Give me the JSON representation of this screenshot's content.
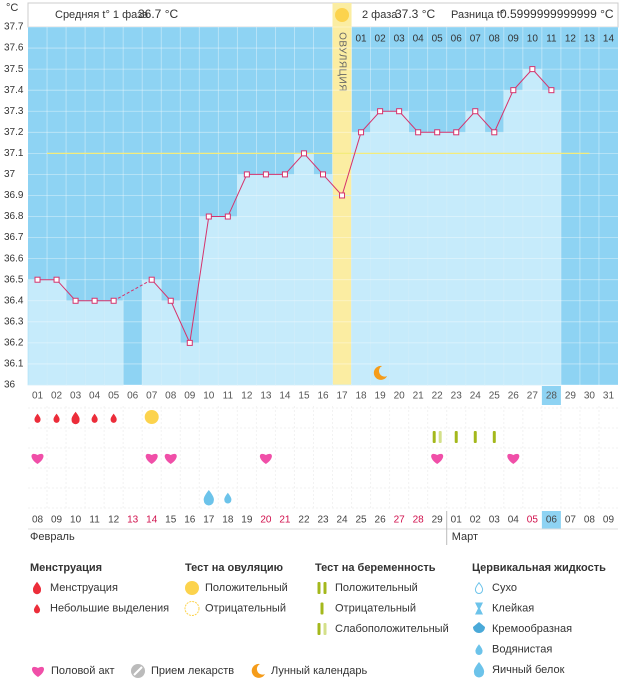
{
  "chart_data": {
    "type": "line",
    "y_unit": "°C",
    "header": {
      "phase1_label": "Средняя t° 1 фаза",
      "phase1_value": "36.7 °C",
      "phase2_label": "2 фаза",
      "phase2_value": "37.3 °C",
      "difference_label": "Разница t°",
      "difference_value": "0.5999999999999 °C"
    },
    "x": [
      "01",
      "02",
      "03",
      "04",
      "05",
      "06",
      "07",
      "08",
      "09",
      "10",
      "11",
      "12",
      "13",
      "14",
      "15",
      "16",
      "17",
      "18",
      "19",
      "20",
      "21",
      "22",
      "23",
      "24",
      "25",
      "26",
      "27",
      "28",
      "29",
      "30",
      "31"
    ],
    "series": [
      {
        "color": "#d6336c",
        "values": [
          36.5,
          36.5,
          36.4,
          36.4,
          36.4,
          null,
          36.5,
          36.4,
          36.2,
          36.8,
          36.8,
          37.0,
          37.0,
          37.0,
          37.1,
          37.0,
          36.9,
          37.2,
          37.3,
          37.3,
          37.2,
          37.2,
          37.2,
          37.3,
          37.2,
          37.4,
          37.5,
          37.4,
          null,
          null,
          null
        ]
      }
    ],
    "fill_color": "#c6ebfb",
    "background_color": "#8ed3f3",
    "ylim": [
      36,
      37.7
    ],
    "yticks": [
      36,
      36.1,
      36.2,
      36.3,
      36.4,
      36.5,
      36.6,
      36.7,
      36.8,
      36.9,
      37,
      37.1,
      37.2,
      37.3,
      37.4,
      37.5,
      37.6,
      37.7
    ],
    "grid": true,
    "cover_line": {
      "value": 37.1,
      "color": "#f4ec7c"
    },
    "ovulation": {
      "day": "17",
      "label": "ОВУЛЯЦИЯ",
      "color": "#fbeda2"
    },
    "phase2_days": [
      "01",
      "02",
      "03",
      "04",
      "05",
      "06",
      "07",
      "08",
      "09",
      "10",
      "11",
      "12",
      "13",
      "14"
    ],
    "today": "28",
    "dates": [
      "08",
      "09",
      "10",
      "11",
      "12",
      "13",
      "14",
      "15",
      "16",
      "17",
      "18",
      "19",
      "20",
      "21",
      "22",
      "23",
      "24",
      "25",
      "26",
      "27",
      "28",
      "29",
      "01",
      "02",
      "03",
      "04",
      "05",
      "06",
      "07",
      "08",
      "09"
    ],
    "date_colors": [
      "#444",
      "#444",
      "#444",
      "#444",
      "#444",
      "#d0104c",
      "#d0104c",
      "#444",
      "#444",
      "#444",
      "#444",
      "#444",
      "#d0104c",
      "#d0104c",
      "#444",
      "#444",
      "#444",
      "#444",
      "#444",
      "#d0104c",
      "#d0104c",
      "#444",
      "#444",
      "#444",
      "#444",
      "#444",
      "#d0104c",
      "#444",
      "#444",
      "#444",
      "#444"
    ],
    "months": [
      "Февраль",
      "Март"
    ],
    "moon_days": [
      "19"
    ],
    "symbols": {
      "menstruation": [
        {
          "day": "01",
          "kind": "light"
        },
        {
          "day": "02",
          "kind": "light"
        },
        {
          "day": "03",
          "kind": "heavy"
        },
        {
          "day": "04",
          "kind": "light"
        },
        {
          "day": "05",
          "kind": "light"
        }
      ],
      "ovulation_test": [
        {
          "day": "07",
          "kind": "positive"
        }
      ],
      "pregnancy_test": [
        {
          "day": "22",
          "kind": "weak"
        },
        {
          "day": "23",
          "kind": "negative"
        },
        {
          "day": "24",
          "kind": "negative"
        },
        {
          "day": "25",
          "kind": "negative"
        }
      ],
      "intercourse": [
        "01",
        "07",
        "08",
        "13",
        "22",
        "26"
      ],
      "cervical_fluid": [
        {
          "day": "10",
          "kind": "egg-white"
        },
        {
          "day": "11",
          "kind": "watery"
        }
      ]
    },
    "legend": [
      {
        "title": "Менструация",
        "items": [
          {
            "label": "Менструация",
            "icon": "menstruation-heavy"
          },
          {
            "label": "Небольшие выделения",
            "icon": "menstruation-light"
          }
        ]
      },
      {
        "title": "Тест на овуляцию",
        "items": [
          {
            "label": "Положительный",
            "icon": "ovulation-positive"
          },
          {
            "label": "Отрицательный",
            "icon": "ovulation-negative"
          }
        ]
      },
      {
        "title": "Тест на беременность",
        "items": [
          {
            "label": "Положительный",
            "icon": "pregnancy-positive"
          },
          {
            "label": "Отрицательный",
            "icon": "pregnancy-negative"
          },
          {
            "label": "Слабоположительный",
            "icon": "pregnancy-weak"
          }
        ]
      },
      {
        "title": "Цервикальная жидкость",
        "items": [
          {
            "label": "Сухо",
            "icon": "dry"
          },
          {
            "label": "Клейкая",
            "icon": "sticky"
          },
          {
            "label": "Кремообразная",
            "icon": "creamy"
          },
          {
            "label": "Водянистая",
            "icon": "watery"
          },
          {
            "label": "Яичный белок",
            "icon": "egg-white"
          }
        ]
      }
    ],
    "legend_extra": [
      {
        "label": "Половой акт",
        "icon": "heart"
      },
      {
        "label": "Прием лекарств",
        "icon": "pill"
      },
      {
        "label": "Лунный календарь",
        "icon": "moon"
      }
    ]
  }
}
